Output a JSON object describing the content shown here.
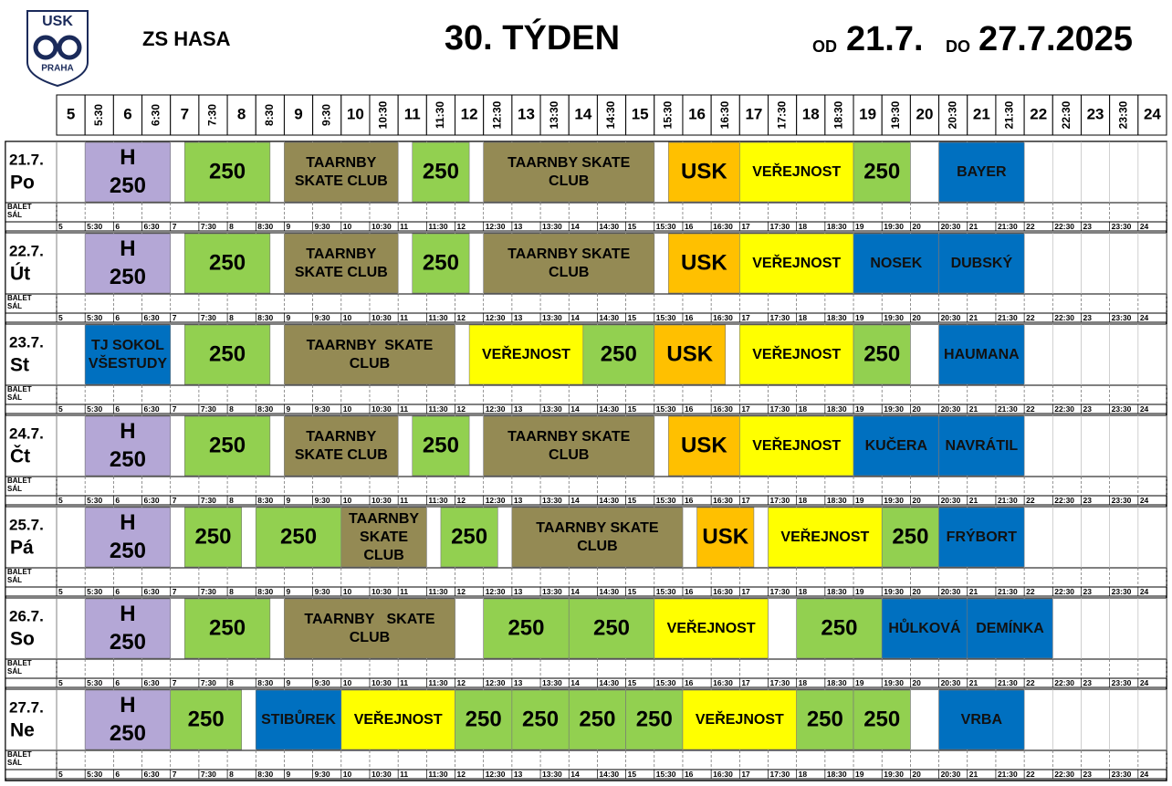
{
  "header": {
    "logo_top": "USK",
    "logo_bottom": "PRAHA",
    "venue": "ZS HASA",
    "title": "30. TÝDEN",
    "from_label": "OD",
    "from_date": "21.7.",
    "to_label": "DO",
    "to_date": "27.7.2025"
  },
  "times": [
    "5",
    "5:30",
    "6",
    "6:30",
    "7",
    "7:30",
    "8",
    "8:30",
    "9",
    "9:30",
    "10",
    "10:30",
    "11",
    "11:30",
    "12",
    "12:30",
    "13",
    "13:30",
    "14",
    "14:30",
    "15",
    "15:30",
    "16",
    "16:30",
    "17",
    "17:30",
    "18",
    "18:30",
    "19",
    "19:30",
    "20",
    "20:30",
    "21",
    "21:30",
    "22",
    "22:30",
    "23",
    "23:30",
    "24"
  ],
  "balet_label": [
    "BALET",
    "SÁL"
  ],
  "days": [
    {
      "date": "21.7.",
      "weekday": "Po",
      "blocks": [
        {
          "text": [
            "H",
            "250"
          ],
          "start": 5.5,
          "end": 7,
          "color": "#b4a7d6"
        },
        {
          "text": [
            "250"
          ],
          "start": 7.25,
          "end": 8.75,
          "color": "#92d050"
        },
        {
          "text": [
            "TAARNBY",
            "SKATE CLUB"
          ],
          "start": 9,
          "end": 11,
          "color": "#948a54"
        },
        {
          "text": [
            "250"
          ],
          "start": 11.25,
          "end": 12.25,
          "color": "#92d050"
        },
        {
          "text": [
            "TAARNBY SKATE",
            "CLUB"
          ],
          "start": 12.5,
          "end": 15.5,
          "color": "#948a54"
        },
        {
          "text": [
            "USK"
          ],
          "start": 15.75,
          "end": 17,
          "color": "#ffc000"
        },
        {
          "text": [
            "VEŘEJNOST"
          ],
          "start": 17,
          "end": 19,
          "color": "#ffff00"
        },
        {
          "text": [
            "250"
          ],
          "start": 19,
          "end": 20,
          "color": "#92d050"
        },
        {
          "text": [
            "BAYER"
          ],
          "start": 20.5,
          "end": 22,
          "color": "#0070c0"
        }
      ]
    },
    {
      "date": "22.7.",
      "weekday": "Út",
      "blocks": [
        {
          "text": [
            "H",
            "250"
          ],
          "start": 5.5,
          "end": 7,
          "color": "#b4a7d6"
        },
        {
          "text": [
            "250"
          ],
          "start": 7.25,
          "end": 8.75,
          "color": "#92d050"
        },
        {
          "text": [
            "TAARNBY",
            "SKATE CLUB"
          ],
          "start": 9,
          "end": 11,
          "color": "#948a54"
        },
        {
          "text": [
            "250"
          ],
          "start": 11.25,
          "end": 12.25,
          "color": "#92d050"
        },
        {
          "text": [
            "TAARNBY SKATE",
            "CLUB"
          ],
          "start": 12.5,
          "end": 15.5,
          "color": "#948a54"
        },
        {
          "text": [
            "USK"
          ],
          "start": 15.75,
          "end": 17,
          "color": "#ffc000"
        },
        {
          "text": [
            "VEŘEJNOST"
          ],
          "start": 17,
          "end": 19,
          "color": "#ffff00"
        },
        {
          "text": [
            "NOSEK"
          ],
          "start": 19,
          "end": 20.5,
          "color": "#0070c0"
        },
        {
          "text": [
            "DUBSKÝ"
          ],
          "start": 20.5,
          "end": 22,
          "color": "#0070c0"
        }
      ]
    },
    {
      "date": "23.7.",
      "weekday": "St",
      "blocks": [
        {
          "text": [
            "TJ SOKOL",
            "VŠESTUDY"
          ],
          "start": 5.5,
          "end": 7,
          "color": "#0070c0"
        },
        {
          "text": [
            "250"
          ],
          "start": 7.25,
          "end": 8.75,
          "color": "#92d050"
        },
        {
          "text": [
            "TAARNBY  SKATE",
            "CLUB"
          ],
          "start": 9,
          "end": 12,
          "color": "#948a54"
        },
        {
          "text": [
            "VEŘEJNOST"
          ],
          "start": 12.25,
          "end": 14.25,
          "color": "#ffff00"
        },
        {
          "text": [
            "250"
          ],
          "start": 14.25,
          "end": 15.5,
          "color": "#92d050"
        },
        {
          "text": [
            "USK"
          ],
          "start": 15.5,
          "end": 16.75,
          "color": "#ffc000"
        },
        {
          "text": [
            "VEŘEJNOST"
          ],
          "start": 17,
          "end": 19,
          "color": "#ffff00"
        },
        {
          "text": [
            "250"
          ],
          "start": 19,
          "end": 20,
          "color": "#92d050"
        },
        {
          "text": [
            "HAUMANA"
          ],
          "start": 20.5,
          "end": 22,
          "color": "#0070c0"
        }
      ]
    },
    {
      "date": "24.7.",
      "weekday": "Čt",
      "blocks": [
        {
          "text": [
            "H",
            "250"
          ],
          "start": 5.5,
          "end": 7,
          "color": "#b4a7d6"
        },
        {
          "text": [
            "250"
          ],
          "start": 7.25,
          "end": 8.75,
          "color": "#92d050"
        },
        {
          "text": [
            "TAARNBY",
            "SKATE CLUB"
          ],
          "start": 9,
          "end": 11,
          "color": "#948a54"
        },
        {
          "text": [
            "250"
          ],
          "start": 11.25,
          "end": 12.25,
          "color": "#92d050"
        },
        {
          "text": [
            "TAARNBY SKATE",
            "CLUB"
          ],
          "start": 12.5,
          "end": 15.5,
          "color": "#948a54"
        },
        {
          "text": [
            "USK"
          ],
          "start": 15.75,
          "end": 17,
          "color": "#ffc000"
        },
        {
          "text": [
            "VEŘEJNOST"
          ],
          "start": 17,
          "end": 19,
          "color": "#ffff00"
        },
        {
          "text": [
            "KUČERA"
          ],
          "start": 19,
          "end": 20.5,
          "color": "#0070c0"
        },
        {
          "text": [
            "NAVRÁTIL"
          ],
          "start": 20.5,
          "end": 22,
          "color": "#0070c0"
        }
      ]
    },
    {
      "date": "25.7.",
      "weekday": "Pá",
      "blocks": [
        {
          "text": [
            "H",
            "250"
          ],
          "start": 5.5,
          "end": 7,
          "color": "#b4a7d6"
        },
        {
          "text": [
            "250"
          ],
          "start": 7.25,
          "end": 8.25,
          "color": "#92d050"
        },
        {
          "text": [
            "250"
          ],
          "start": 8.5,
          "end": 10,
          "color": "#92d050"
        },
        {
          "text": [
            "TAARNBY",
            "SKATE",
            "CLUB"
          ],
          "start": 10,
          "end": 11.5,
          "color": "#948a54"
        },
        {
          "text": [
            "250"
          ],
          "start": 11.75,
          "end": 12.75,
          "color": "#92d050"
        },
        {
          "text": [
            "TAARNBY SKATE",
            "CLUB"
          ],
          "start": 13,
          "end": 16,
          "color": "#948a54"
        },
        {
          "text": [
            "USK"
          ],
          "start": 16.25,
          "end": 17.25,
          "color": "#ffc000"
        },
        {
          "text": [
            "VEŘEJNOST"
          ],
          "start": 17.5,
          "end": 19.5,
          "color": "#ffff00"
        },
        {
          "text": [
            "250"
          ],
          "start": 19.5,
          "end": 20.5,
          "color": "#92d050"
        },
        {
          "text": [
            "FRÝBORT"
          ],
          "start": 20.5,
          "end": 22,
          "color": "#0070c0"
        }
      ]
    },
    {
      "date": "26.7.",
      "weekday": "So",
      "blocks": [
        {
          "text": [
            "H",
            "250"
          ],
          "start": 5.5,
          "end": 7,
          "color": "#b4a7d6"
        },
        {
          "text": [
            "250"
          ],
          "start": 7.25,
          "end": 8.75,
          "color": "#92d050"
        },
        {
          "text": [
            "TAARNBY   SKATE",
            "CLUB"
          ],
          "start": 9,
          "end": 12,
          "color": "#948a54"
        },
        {
          "text": [
            "250"
          ],
          "start": 12.5,
          "end": 14,
          "color": "#92d050"
        },
        {
          "text": [
            "250"
          ],
          "start": 14,
          "end": 15.5,
          "color": "#92d050"
        },
        {
          "text": [
            "VEŘEJNOST"
          ],
          "start": 15.5,
          "end": 17.5,
          "color": "#ffff00"
        },
        {
          "text": [
            "250"
          ],
          "start": 18,
          "end": 19.5,
          "color": "#92d050"
        },
        {
          "text": [
            "HŮLKOVÁ"
          ],
          "start": 19.5,
          "end": 21,
          "color": "#0070c0"
        },
        {
          "text": [
            "DEMÍNKA"
          ],
          "start": 21,
          "end": 22.5,
          "color": "#0070c0"
        }
      ]
    },
    {
      "date": "27.7.",
      "weekday": "Ne",
      "blocks": [
        {
          "text": [
            "H",
            "250"
          ],
          "start": 5.5,
          "end": 7,
          "color": "#b4a7d6"
        },
        {
          "text": [
            "250"
          ],
          "start": 7,
          "end": 8.25,
          "color": "#92d050"
        },
        {
          "text": [
            "STIBŮREK"
          ],
          "start": 8.5,
          "end": 10,
          "color": "#0070c0"
        },
        {
          "text": [
            "VEŘEJNOST"
          ],
          "start": 10,
          "end": 12,
          "color": "#ffff00"
        },
        {
          "text": [
            "250"
          ],
          "start": 12,
          "end": 13,
          "color": "#92d050"
        },
        {
          "text": [
            "250"
          ],
          "start": 13,
          "end": 14,
          "color": "#92d050"
        },
        {
          "text": [
            "250"
          ],
          "start": 14,
          "end": 15,
          "color": "#92d050"
        },
        {
          "text": [
            "250"
          ],
          "start": 15,
          "end": 16,
          "color": "#92d050"
        },
        {
          "text": [
            "VEŘEJNOST"
          ],
          "start": 16,
          "end": 18,
          "color": "#ffff00"
        },
        {
          "text": [
            "250"
          ],
          "start": 18,
          "end": 19,
          "color": "#92d050"
        },
        {
          "text": [
            "250"
          ],
          "start": 19,
          "end": 20,
          "color": "#92d050"
        },
        {
          "text": [
            "VRBA"
          ],
          "start": 20.5,
          "end": 22,
          "color": "#0070c0"
        }
      ]
    }
  ]
}
